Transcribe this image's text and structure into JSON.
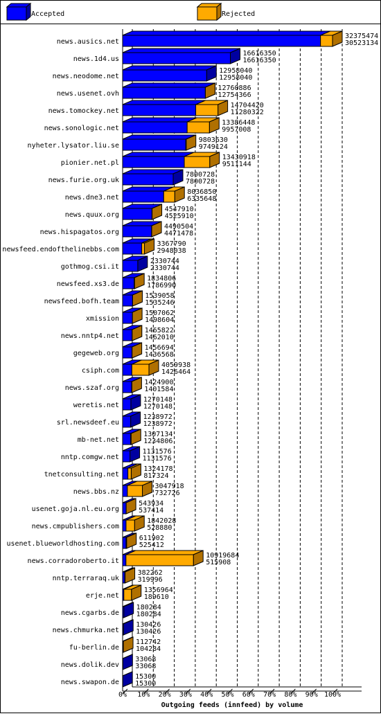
{
  "chart_data": {
    "type": "bar3d",
    "x_label": "Outgoing feeds (innfeed) by volume",
    "series": [
      {
        "name": "Accepted",
        "color": "#0000ff",
        "values": [
          30523134,
          16616350,
          12958040,
          12754366,
          11280322,
          9957008,
          9749124,
          9511144,
          7800728,
          6335648,
          4525910,
          4471478,
          2948038,
          2330744,
          1786990,
          1535246,
          1498604,
          1462010,
          1436568,
          1426464,
          1401584,
          1270148,
          1238972,
          1234806,
          1131576,
          817324,
          732726,
          537414,
          528880,
          525412,
          515908,
          319996,
          189610,
          180284,
          130426,
          104284,
          33068,
          15300
        ]
      },
      {
        "name": "Rejected",
        "color": "#ffaa00"
      }
    ],
    "categories": [
      "news.ausics.net",
      "news.1d4.us",
      "news.neodome.net",
      "news.usenet.ovh",
      "news.tomockey.net",
      "news.sonologic.net",
      "nyheter.lysator.liu.se",
      "pionier.net.pl",
      "news.furie.org.uk",
      "news.dne3.net",
      "news.quux.org",
      "news.hispagatos.org",
      "newsfeed.endofthelinebbs.com",
      "gothmog.csi.it",
      "newsfeed.xs3.de",
      "newsfeed.bofh.team",
      "xmission",
      "news.nntp4.net",
      "gegeweb.org",
      "csiph.com",
      "news.szaf.org",
      "weretis.net",
      "srl.newsdeef.eu",
      "mb-net.net",
      "nntp.comgw.net",
      "tnetconsulting.net",
      "news.bbs.nz",
      "usenet.goja.nl.eu.org",
      "news.cmpublishers.com",
      "usenet.blueworldhosting.com",
      "news.corradoroberto.it",
      "nntp.terraraq.uk",
      "erje.net",
      "news.cgarbs.de",
      "news.chmurka.net",
      "fu-berlin.de",
      "news.dolik.dev",
      "news.swapon.de"
    ],
    "totals": [
      32375474,
      16616350,
      12958040,
      12760886,
      14704420,
      13386448,
      9803630,
      13430918,
      7800728,
      8036850,
      4547910,
      4490504,
      3367790,
      2330744,
      1834806,
      1539058,
      1507062,
      1465822,
      1456694,
      4059938,
      1424900,
      1270148,
      1238972,
      1307134,
      1131576,
      1324178,
      3047918,
      543934,
      1842028,
      611902,
      10919684,
      382262,
      1356964,
      180284,
      130426,
      112742,
      33068,
      15300
    ],
    "xlim": [
      0,
      100
    ],
    "xticks": [
      {
        "value": 0,
        "label": "0%"
      },
      {
        "value": 10,
        "label": "10%"
      },
      {
        "value": 20,
        "label": "20%"
      },
      {
        "value": 30,
        "label": "30%"
      },
      {
        "value": 40,
        "label": "40%"
      },
      {
        "value": 50,
        "label": "50%"
      },
      {
        "value": 60,
        "label": "60%"
      },
      {
        "value": 70,
        "label": "70%"
      },
      {
        "value": 80,
        "label": "80%"
      },
      {
        "value": 90,
        "label": "90%"
      },
      {
        "value": 100,
        "label": "100%"
      }
    ],
    "grid": true
  }
}
